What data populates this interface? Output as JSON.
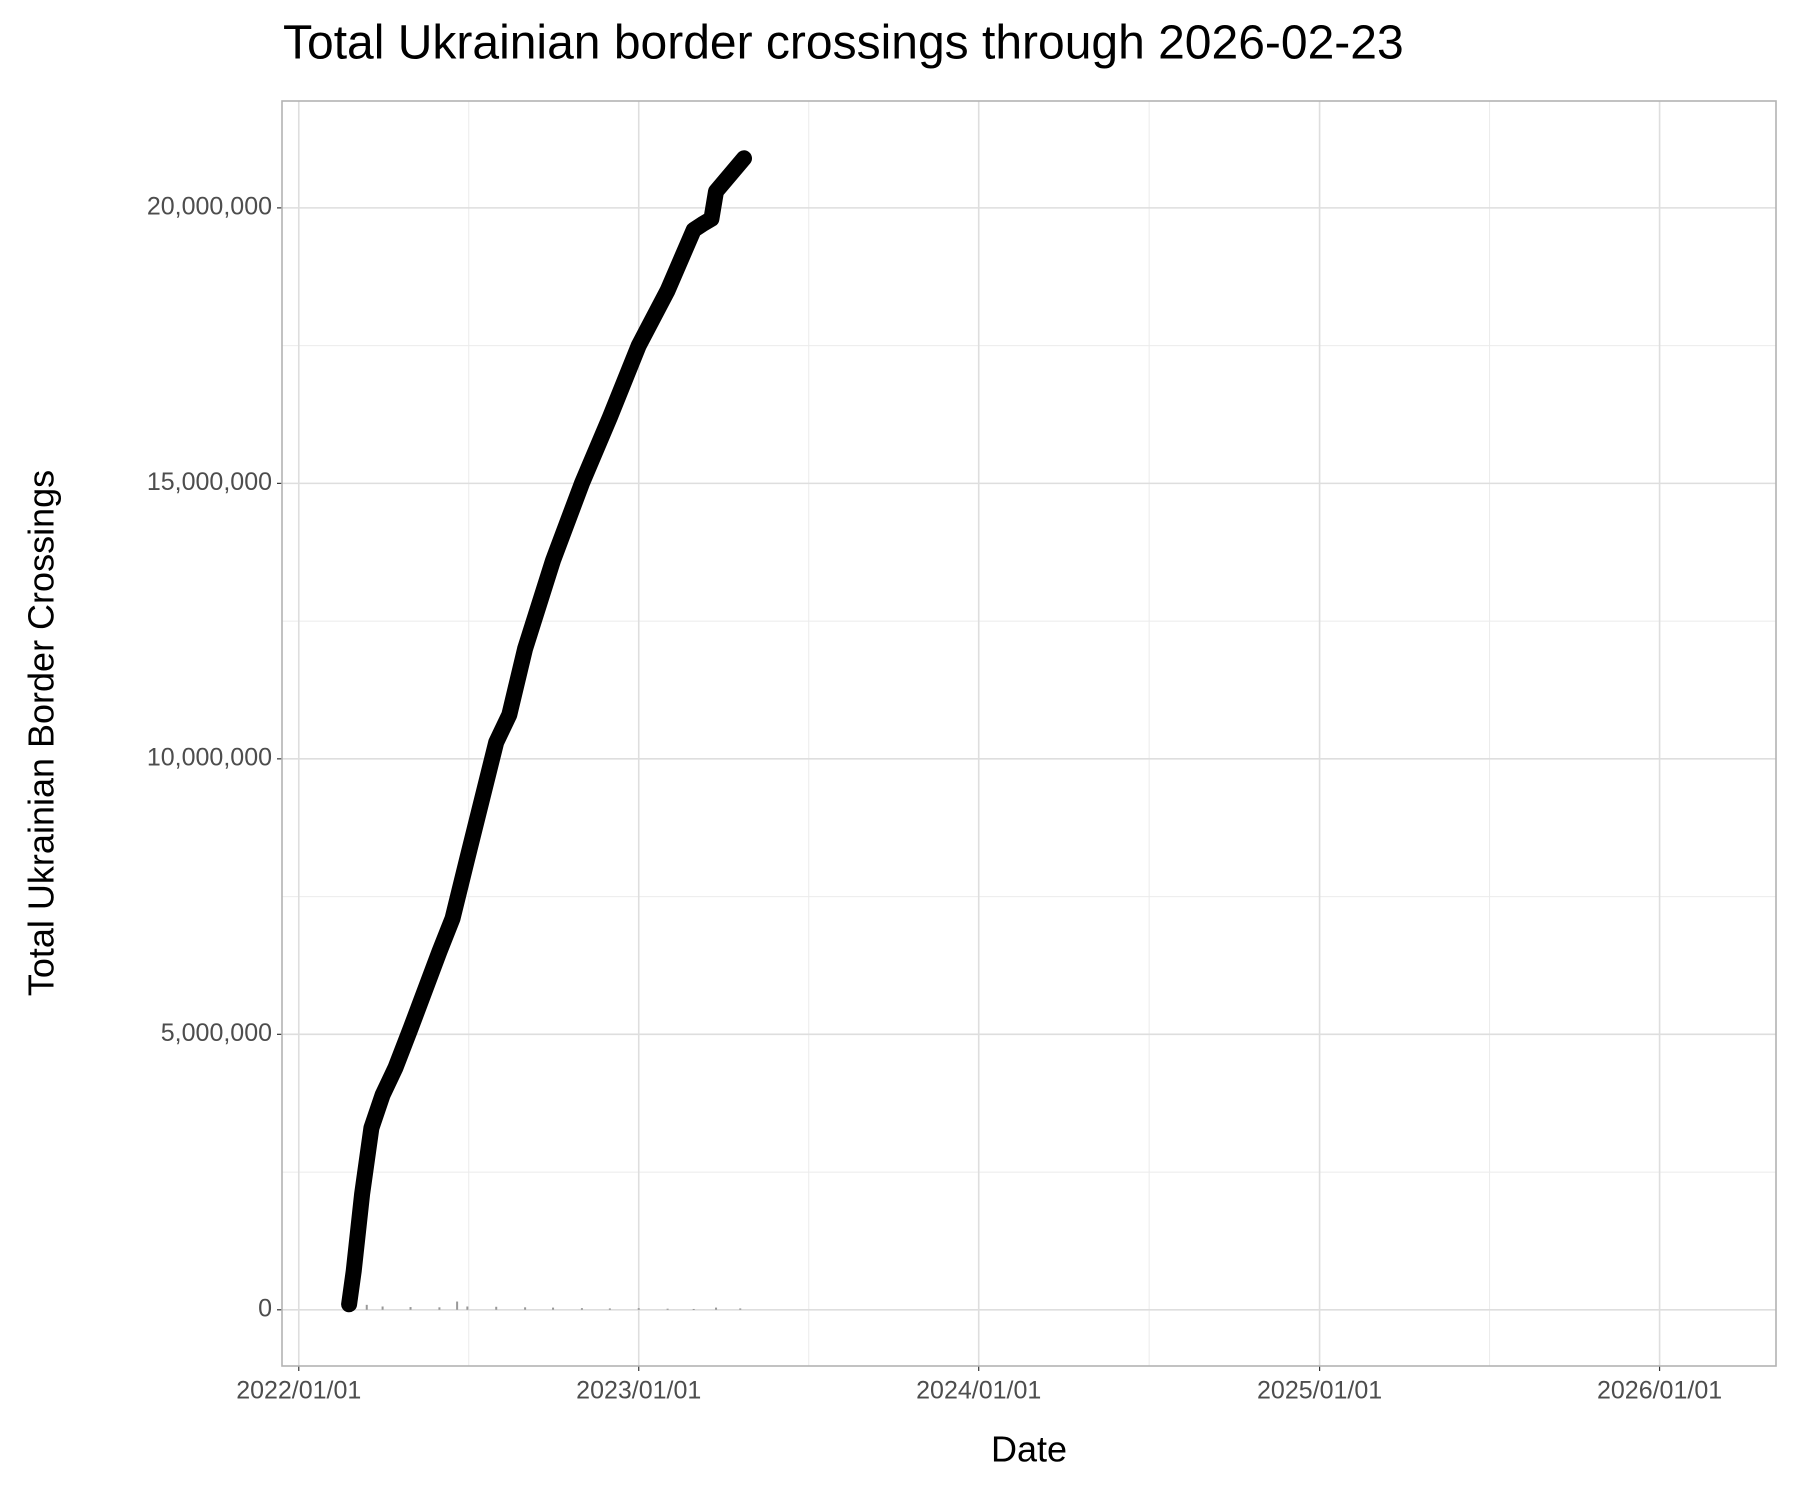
{
  "chart_data": {
    "type": "line",
    "title": "Total Ukrainian border crossings through 2026-02-23",
    "x_label": "Date",
    "y_label": "Total Ukrainian Border Crossings",
    "x": [
      "2022-02-24",
      "2022-03-01",
      "2022-03-10",
      "2022-03-20",
      "2022-04-01",
      "2022-04-15",
      "2022-05-01",
      "2022-06-01",
      "2022-06-15",
      "2022-07-01",
      "2022-08-01",
      "2022-08-15",
      "2022-09-01",
      "2022-10-01",
      "2022-11-01",
      "2022-12-01",
      "2023-01-01",
      "2023-02-01",
      "2023-03-01",
      "2023-03-10",
      "2023-03-20",
      "2023-03-25",
      "2023-04-24"
    ],
    "values": [
      100000,
      700000,
      2100000,
      3300000,
      3900000,
      4400000,
      5100000,
      6500000,
      7100000,
      8200000,
      10300000,
      10800000,
      12000000,
      13600000,
      15000000,
      16200000,
      17500000,
      18500000,
      19600000,
      19700000,
      19800000,
      20300000,
      20900000
    ],
    "color": "#000000",
    "bars": {
      "color": "#999999",
      "x": [
        "2022-02-24",
        "2022-03-01",
        "2022-03-15",
        "2022-04-01",
        "2022-05-01",
        "2022-06-01",
        "2022-06-20",
        "2022-07-01",
        "2022-08-01",
        "2022-09-01",
        "2022-10-01",
        "2022-11-01",
        "2022-12-01",
        "2023-01-01",
        "2023-02-01",
        "2023-03-01",
        "2023-03-25",
        "2023-04-20"
      ],
      "values": [
        150000,
        120000,
        90000,
        60000,
        50000,
        45000,
        150000,
        60000,
        55000,
        45000,
        40000,
        30000,
        25000,
        30000,
        20000,
        15000,
        40000,
        25000
      ]
    },
    "xlim": [
      "2021-12-14",
      "2026-05-06"
    ],
    "xticks": [
      {
        "value": "2022-01-01",
        "label": "2022/01/01"
      },
      {
        "value": "2023-01-01",
        "label": "2023/01/01"
      },
      {
        "value": "2024-01-01",
        "label": "2024/01/01"
      },
      {
        "value": "2025-01-01",
        "label": "2025/01/01"
      },
      {
        "value": "2026-01-01",
        "label": "2026/01/01"
      }
    ],
    "ylim": [
      -1020000,
      21940000
    ],
    "yticks": [
      0,
      {
        "value": 5000000,
        "label": "5,000,000"
      },
      {
        "value": 10000000,
        "label": "10,000,000"
      },
      {
        "value": 15000000,
        "label": "15,000,000"
      },
      {
        "value": 20000000,
        "label": "20,000,000"
      }
    ],
    "grid": true
  }
}
